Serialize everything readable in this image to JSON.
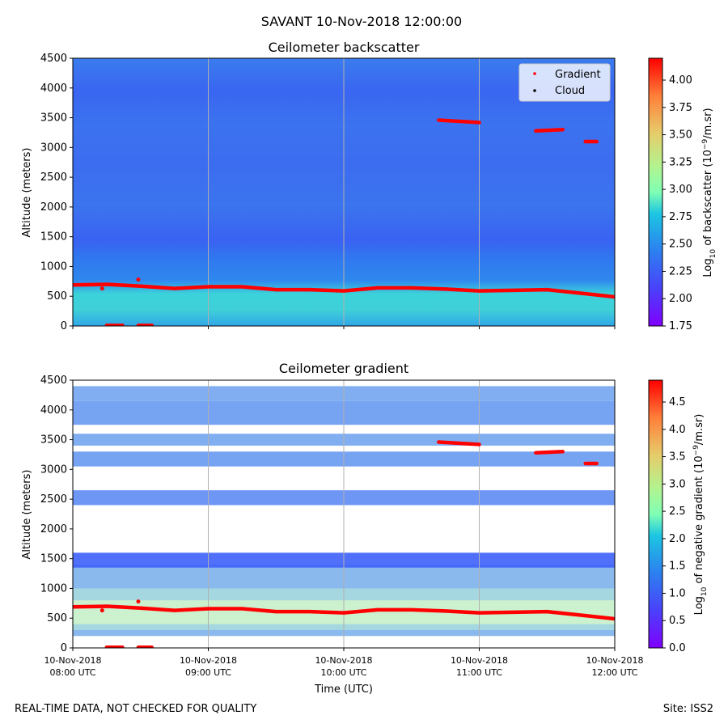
{
  "suptitle": "SAVANT 10-Nov-2018 12:00:00",
  "footer": {
    "left": "REAL-TIME DATA, NOT CHECKED FOR QUALITY",
    "right": "Site: ISS2"
  },
  "colors": {
    "gradient_marker": "#ff0000",
    "cloud_marker": "#000000",
    "grid": "#b0b0b0"
  },
  "chart_data": [
    {
      "type": "heatmap",
      "title": "Ceilometer backscatter",
      "ylabel": "Altitude (meters)",
      "xlabel": "",
      "xlim": [
        "08:00",
        "12:00"
      ],
      "ylim": [
        0,
        4500
      ],
      "y_ticks": [
        "0",
        "500",
        "1000",
        "1500",
        "2000",
        "2500",
        "3000",
        "3500",
        "4000",
        "4500"
      ],
      "grid": "vertical",
      "colorbar": {
        "label": "Log10 of backscatter (10^-9/m.sr)",
        "range": [
          1.75,
          4.2
        ],
        "ticks": [
          "1.75",
          "2.00",
          "2.25",
          "2.50",
          "2.75",
          "3.00",
          "3.25",
          "3.50",
          "3.75",
          "4.00"
        ],
        "colormap": "rainbow"
      },
      "legend": {
        "position": "top-right",
        "entries": [
          "Gradient",
          "Cloud"
        ]
      },
      "series": [
        {
          "name": "Gradient",
          "segments": [
            {
              "x": [
                "08:00",
                "08:15",
                "08:30",
                "08:45",
                "09:00",
                "09:15",
                "09:30",
                "09:45",
                "10:00",
                "10:15",
                "10:30",
                "10:45",
                "11:00",
                "11:15",
                "11:30",
                "11:45",
                "12:00"
              ],
              "y": [
                690,
                700,
                670,
                630,
                660,
                660,
                610,
                610,
                590,
                640,
                640,
                620,
                590,
                600,
                610,
                550,
                490
              ]
            },
            {
              "x": [
                "10:42",
                "11:00"
              ],
              "y": [
                3460,
                3420
              ]
            },
            {
              "x": [
                "11:25",
                "11:37"
              ],
              "y": [
                3280,
                3300
              ]
            },
            {
              "x": [
                "11:47",
                "11:52"
              ],
              "y": [
                3100,
                3100
              ]
            },
            {
              "x": [
                "08:15",
                "08:22"
              ],
              "y": [
                10,
                10
              ]
            },
            {
              "x": [
                "08:29",
                "08:35"
              ],
              "y": [
                10,
                10
              ]
            }
          ],
          "points": [
            {
              "x": "08:29",
              "y": 780
            },
            {
              "x": "08:13",
              "y": 630
            }
          ]
        },
        {
          "name": "Cloud",
          "segments": [],
          "points": []
        }
      ]
    },
    {
      "type": "heatmap",
      "title": "Ceilometer gradient",
      "ylabel": "Altitude (meters)",
      "xlabel": "Time (UTC)",
      "xlim": [
        "08:00",
        "12:00"
      ],
      "ylim": [
        0,
        4500
      ],
      "x_ticks": [
        {
          "x": "08:00",
          "label1": "10-Nov-2018",
          "label2": "08:00 UTC"
        },
        {
          "x": "09:00",
          "label1": "10-Nov-2018",
          "label2": "09:00 UTC"
        },
        {
          "x": "10:00",
          "label1": "10-Nov-2018",
          "label2": "10:00 UTC"
        },
        {
          "x": "11:00",
          "label1": "10-Nov-2018",
          "label2": "11:00 UTC"
        },
        {
          "x": "12:00",
          "label1": "10-Nov-2018",
          "label2": "12:00 UTC"
        }
      ],
      "y_ticks": [
        "0",
        "500",
        "1000",
        "1500",
        "2000",
        "2500",
        "3000",
        "3500",
        "4000",
        "4500"
      ],
      "grid": "vertical",
      "colorbar": {
        "label": "Log10 of negative gradient (10^-9/m.sr)",
        "range": [
          0,
          4.9
        ],
        "ticks": [
          "0.0",
          "0.5",
          "1.0",
          "1.5",
          "2.0",
          "2.5",
          "3.0",
          "3.5",
          "4.0",
          "4.5"
        ],
        "colormap": "rainbow"
      },
      "bands": [
        {
          "y0": 200,
          "y1": 1400,
          "level": 1.2
        },
        {
          "y0": 300,
          "y1": 1000,
          "level": 1.6
        },
        {
          "y0": 400,
          "y1": 800,
          "level": 2.0
        },
        {
          "y0": 1350,
          "y1": 1600,
          "level": 0.6
        },
        {
          "y0": 2400,
          "y1": 2650,
          "level": 0.9
        },
        {
          "y0": 3050,
          "y1": 3300,
          "level": 1.0
        },
        {
          "y0": 3400,
          "y1": 3600,
          "level": 1.1
        },
        {
          "y0": 3750,
          "y1": 4150,
          "level": 1.0
        },
        {
          "y0": 4150,
          "y1": 4400,
          "level": 1.1
        }
      ],
      "series": [
        {
          "name": "Gradient",
          "segments": [
            {
              "x": [
                "08:00",
                "08:15",
                "08:30",
                "08:45",
                "09:00",
                "09:15",
                "09:30",
                "09:45",
                "10:00",
                "10:15",
                "10:30",
                "10:45",
                "11:00",
                "11:15",
                "11:30",
                "11:45",
                "12:00"
              ],
              "y": [
                690,
                700,
                670,
                630,
                660,
                660,
                610,
                610,
                590,
                640,
                640,
                620,
                590,
                600,
                610,
                550,
                490
              ]
            },
            {
              "x": [
                "10:42",
                "11:00"
              ],
              "y": [
                3460,
                3420
              ]
            },
            {
              "x": [
                "11:25",
                "11:37"
              ],
              "y": [
                3280,
                3300
              ]
            },
            {
              "x": [
                "11:47",
                "11:52"
              ],
              "y": [
                3100,
                3100
              ]
            },
            {
              "x": [
                "08:15",
                "08:22"
              ],
              "y": [
                10,
                10
              ]
            },
            {
              "x": [
                "08:29",
                "08:35"
              ],
              "y": [
                10,
                10
              ]
            }
          ],
          "points": [
            {
              "x": "08:29",
              "y": 780
            },
            {
              "x": "08:13",
              "y": 630
            }
          ]
        }
      ]
    }
  ]
}
